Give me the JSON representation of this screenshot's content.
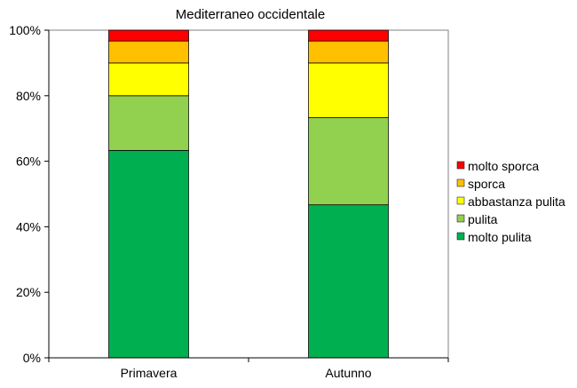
{
  "chart_data": {
    "type": "bar",
    "stacked": true,
    "percent": true,
    "title": "Mediterraneo occidentale",
    "categories": [
      "Primavera",
      "Autunno"
    ],
    "ylim": [
      0,
      100
    ],
    "yticks": [
      "0%",
      "20%",
      "40%",
      "60%",
      "80%",
      "100%"
    ],
    "grid": false,
    "legend_position": "right",
    "series": [
      {
        "name": "molto pulita",
        "color": "#00b050",
        "values": [
          63.3,
          46.7
        ]
      },
      {
        "name": "pulita",
        "color": "#92d050",
        "values": [
          16.7,
          26.6
        ]
      },
      {
        "name": "abbastanza pulita",
        "color": "#ffff00",
        "values": [
          10.0,
          16.7
        ]
      },
      {
        "name": "sporca",
        "color": "#ffc000",
        "values": [
          6.7,
          6.7
        ]
      },
      {
        "name": "molto sporca",
        "color": "#ff0000",
        "values": [
          3.3,
          3.3
        ]
      }
    ]
  }
}
